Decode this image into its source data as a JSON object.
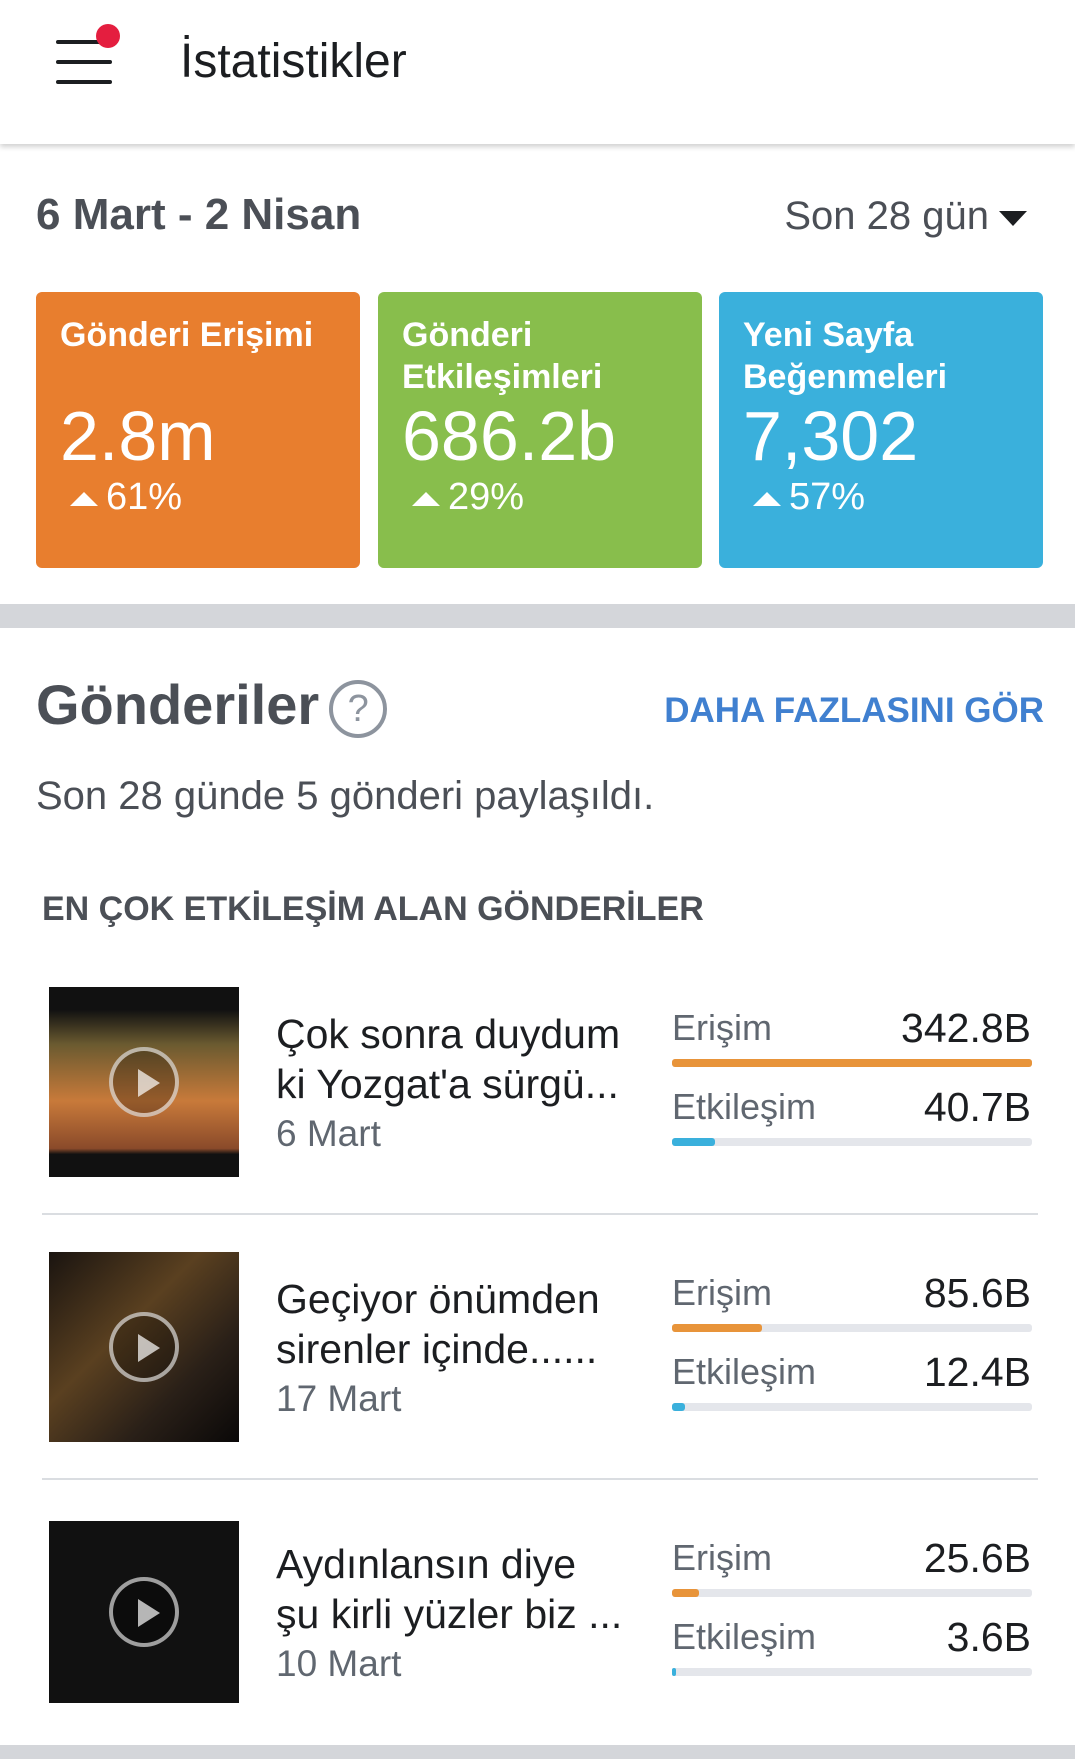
{
  "header": {
    "title": "İstatistikler"
  },
  "summary": {
    "date_range": "6 Mart - 2 Nisan",
    "period": "Son 28 gün",
    "cards": [
      {
        "label": "Gönderi Erişimi",
        "value": "2.8m",
        "change": "61%",
        "color": "#e87e2e"
      },
      {
        "label": "Gönderi Etkileşimleri",
        "value": "686.2b",
        "change": "29%",
        "color": "#88be4c"
      },
      {
        "label": "Yeni Sayfa Beğenmeleri",
        "value": "7,302",
        "change": "57%",
        "color": "#3ab0dc"
      }
    ]
  },
  "posts": {
    "title": "Gönderiler",
    "help": "?",
    "more": "DAHA FAZLASINI GÖR",
    "subtitle": "Son 28 günde 5 gönderi paylaşıldı.",
    "list_heading": "EN ÇOK ETKİLEŞİM ALAN GÖNDERİLER",
    "reach_label": "Erişim",
    "engagement_label": "Etkileşim",
    "reach_color": "#e8943a",
    "engagement_color": "#3ab0dc",
    "items": [
      {
        "title_lines": [
          "Çok sonra duydum",
          "ki Yozgat'a sürgü..."
        ],
        "date": "6 Mart",
        "reach": {
          "value": 342.8,
          "label": "342.8B"
        },
        "engagement": {
          "value": 40.7,
          "label": "40.7B"
        }
      },
      {
        "title_lines": [
          "Geçiyor önümden",
          "sirenler içinde......"
        ],
        "date": "17 Mart",
        "reach": {
          "value": 85.6,
          "label": "85.6B"
        },
        "engagement": {
          "value": 12.4,
          "label": "12.4B"
        }
      },
      {
        "title_lines": [
          "Aydınlansın diye",
          "şu kirli yüzler biz ..."
        ],
        "date": "10 Mart",
        "reach": {
          "value": 25.6,
          "label": "25.6B"
        },
        "engagement": {
          "value": 3.6,
          "label": "3.6B"
        }
      }
    ]
  }
}
